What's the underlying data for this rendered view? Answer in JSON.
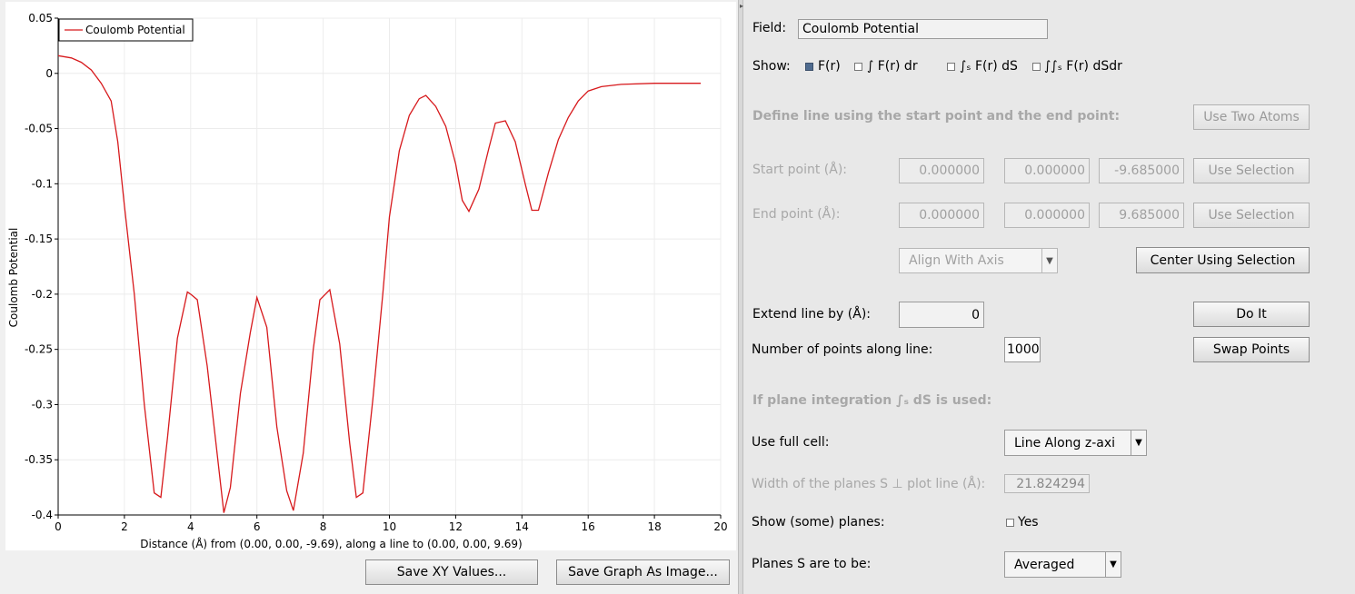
{
  "plot": {
    "save_xy_label": "Save XY Values...",
    "save_graph_label": "Save Graph As Image..."
  },
  "chart_data": {
    "type": "line",
    "xlabel": "Distance (Å) from (0.00, 0.00, -9.69), along a line to (0.00, 0.00, 9.69)",
    "ylabel": "Coulomb Potential",
    "xlim": [
      0,
      20
    ],
    "ylim": [
      -0.4,
      0.05
    ],
    "x_ticks": [
      "0",
      "2",
      "4",
      "6",
      "8",
      "10",
      "12",
      "14",
      "16",
      "18",
      "20"
    ],
    "y_ticks": [
      "0.05",
      "0",
      "-0.05",
      "-0.1",
      "-0.15",
      "-0.2",
      "-0.25",
      "-0.3",
      "-0.35",
      "-0.4"
    ],
    "grid": true,
    "legend_position": "top-left",
    "line_color": "#d7191c",
    "series": [
      {
        "name": "Coulomb Potential",
        "x": [
          0,
          0.4,
          0.7,
          1.0,
          1.3,
          1.6,
          1.8,
          2.0,
          2.3,
          2.6,
          2.9,
          3.1,
          3.3,
          3.6,
          3.9,
          4.0,
          4.2,
          4.5,
          4.8,
          5.0,
          5.2,
          5.5,
          5.8,
          6.0,
          6.3,
          6.6,
          6.9,
          7.1,
          7.4,
          7.7,
          7.9,
          8.2,
          8.5,
          8.8,
          9.0,
          9.2,
          9.5,
          9.8,
          10.0,
          10.3,
          10.6,
          10.9,
          11.1,
          11.4,
          11.7,
          12.0,
          12.2,
          12.4,
          12.7,
          13.0,
          13.2,
          13.5,
          13.8,
          14.1,
          14.3,
          14.5,
          14.8,
          15.1,
          15.4,
          15.7,
          16.0,
          16.4,
          17.0,
          18.0,
          19.0,
          19.4
        ],
        "y": [
          0.016,
          0.014,
          0.01,
          0.003,
          -0.009,
          -0.025,
          -0.062,
          -0.12,
          -0.2,
          -0.3,
          -0.38,
          -0.384,
          -0.33,
          -0.24,
          -0.198,
          -0.2,
          -0.205,
          -0.265,
          -0.345,
          -0.398,
          -0.375,
          -0.29,
          -0.235,
          -0.203,
          -0.23,
          -0.32,
          -0.378,
          -0.396,
          -0.344,
          -0.25,
          -0.205,
          -0.196,
          -0.245,
          -0.335,
          -0.384,
          -0.38,
          -0.295,
          -0.2,
          -0.13,
          -0.07,
          -0.038,
          -0.023,
          -0.02,
          -0.03,
          -0.048,
          -0.082,
          -0.115,
          -0.125,
          -0.105,
          -0.068,
          -0.045,
          -0.043,
          -0.062,
          -0.1,
          -0.124,
          -0.124,
          -0.09,
          -0.06,
          -0.04,
          -0.025,
          -0.016,
          -0.012,
          -0.01,
          -0.009,
          -0.009,
          -0.009
        ]
      }
    ]
  },
  "settings": {
    "field_label": "Field:",
    "field_value": "Coulomb Potential",
    "show_label": "Show:",
    "show_options": [
      {
        "label": "F(r)",
        "checked": true
      },
      {
        "label": "∫ F(r) dr",
        "checked": false
      },
      {
        "label": "∫ₛ F(r) dS",
        "checked": false
      },
      {
        "label": "∫∫ₛ F(r) dSdr",
        "checked": false
      }
    ],
    "define_line_heading": "Define line using the start point and the end point:",
    "use_two_atoms_label": "Use Two Atoms",
    "start_point_label": "Start point (Å):",
    "start_point": [
      "0.000000",
      "0.000000",
      "-9.685000"
    ],
    "end_point_label": "End point (Å):",
    "end_point": [
      "0.000000",
      "0.000000",
      "9.685000"
    ],
    "use_selection_label": "Use Selection",
    "align_with_axis_value": "Align With Axis",
    "center_using_selection_label": "Center Using Selection",
    "extend_line_label": "Extend line by (Å):",
    "extend_line_value": "0",
    "do_it_label": "Do It",
    "num_points_label": "Number of points along line:",
    "num_points_value": "1000",
    "swap_points_label": "Swap Points",
    "plane_integration_heading": "If plane integration ∫ₛ dS is used:",
    "use_full_cell_label": "Use full cell:",
    "use_full_cell_value": "Line Along z-axi",
    "width_planes_label": "Width of the planes S ⊥ plot line (Å):",
    "width_planes_value": "21.824294",
    "show_planes_label": "Show (some) planes:",
    "show_planes_option": "Yes",
    "planes_to_be_label": "Planes S are to be:",
    "planes_to_be_value": "Averaged"
  }
}
